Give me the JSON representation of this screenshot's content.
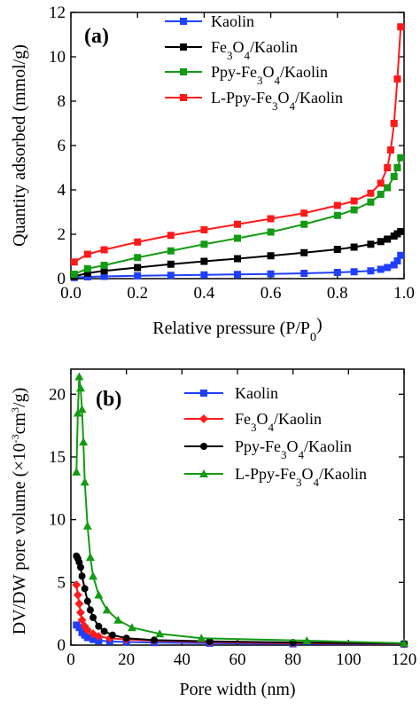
{
  "chart_data": [
    {
      "type": "line",
      "panel_label": "(a)",
      "xlabel": "Relative pressure (P/P",
      "xlabel_sub": "0",
      "xlabel_tail": ")",
      "ylabel": "Quantity adsorbed (mmol/g)",
      "xlim": [
        0.0,
        1.0
      ],
      "ylim": [
        0,
        12
      ],
      "x_ticks": [
        "0.0",
        "0.2",
        "0.4",
        "0.6",
        "0.8",
        "1.0"
      ],
      "y_ticks": [
        "0",
        "2",
        "4",
        "6",
        "8",
        "10",
        "12"
      ],
      "legend_position": "top-right",
      "series": [
        {
          "name": "Kaolin",
          "legend": [
            "Kaolin"
          ],
          "color": "#1f3fff",
          "marker": "square",
          "x": [
            0.01,
            0.05,
            0.1,
            0.2,
            0.3,
            0.4,
            0.5,
            0.6,
            0.7,
            0.8,
            0.85,
            0.9,
            0.93,
            0.95,
            0.97,
            0.98,
            0.99
          ],
          "y": [
            0.05,
            0.08,
            0.1,
            0.13,
            0.15,
            0.17,
            0.19,
            0.21,
            0.24,
            0.28,
            0.31,
            0.35,
            0.42,
            0.5,
            0.62,
            0.8,
            1.05
          ]
        },
        {
          "name": "Fe3O4/Kaolin",
          "legend": [
            "Fe",
            "3",
            "O",
            "4",
            "/Kaolin"
          ],
          "color": "#000000",
          "marker": "square",
          "x": [
            0.01,
            0.05,
            0.1,
            0.2,
            0.3,
            0.4,
            0.5,
            0.6,
            0.7,
            0.8,
            0.85,
            0.9,
            0.93,
            0.95,
            0.97,
            0.98,
            0.99
          ],
          "y": [
            0.1,
            0.25,
            0.35,
            0.5,
            0.65,
            0.78,
            0.9,
            1.03,
            1.17,
            1.32,
            1.42,
            1.55,
            1.67,
            1.78,
            1.92,
            2.02,
            2.12
          ]
        },
        {
          "name": "Ppy-Fe3O4/Kaolin",
          "legend": [
            "Ppy-Fe",
            "3",
            "O",
            "4",
            "/Kaolin"
          ],
          "color": "#139b13",
          "marker": "square",
          "x": [
            0.01,
            0.05,
            0.1,
            0.2,
            0.3,
            0.4,
            0.5,
            0.6,
            0.7,
            0.8,
            0.85,
            0.9,
            0.93,
            0.95,
            0.97,
            0.98,
            0.99
          ],
          "y": [
            0.2,
            0.45,
            0.6,
            0.95,
            1.25,
            1.55,
            1.82,
            2.1,
            2.45,
            2.85,
            3.1,
            3.45,
            3.8,
            4.1,
            4.6,
            5.0,
            5.45
          ]
        },
        {
          "name": "L-Ppy-Fe3O4/Kaolin",
          "legend": [
            "L-Ppy-Fe",
            "3",
            "O",
            "4",
            "/Kaolin"
          ],
          "color": "#ff1a1a",
          "marker": "square",
          "x": [
            0.01,
            0.05,
            0.1,
            0.2,
            0.3,
            0.4,
            0.5,
            0.6,
            0.7,
            0.8,
            0.85,
            0.9,
            0.93,
            0.95,
            0.96,
            0.97,
            0.98,
            0.99
          ],
          "y": [
            0.75,
            1.1,
            1.3,
            1.65,
            1.95,
            2.2,
            2.45,
            2.7,
            2.95,
            3.3,
            3.5,
            3.85,
            4.3,
            5.0,
            5.8,
            7.0,
            9.0,
            11.35
          ]
        }
      ]
    },
    {
      "type": "line",
      "panel_label": "(b)",
      "xlabel": "Pore width (nm)",
      "ylabel": "DV/DW pore volume (×10",
      "ylabel_sup1": "-3",
      "ylabel_mid": "cm",
      "ylabel_sup2": "3",
      "ylabel_tail": "/g)",
      "xlim": [
        0,
        120
      ],
      "ylim": [
        0,
        22
      ],
      "x_ticks": [
        "0",
        "20",
        "40",
        "60",
        "80",
        "100",
        "120"
      ],
      "y_ticks": [
        "0",
        "5",
        "10",
        "15",
        "20"
      ],
      "legend_position": "top-right",
      "series": [
        {
          "name": "Kaolin",
          "legend": [
            "Kaolin"
          ],
          "color": "#1f3fff",
          "marker": "square",
          "x": [
            2,
            3,
            4,
            5,
            6,
            8,
            10,
            14,
            20,
            30,
            50,
            80,
            120
          ],
          "y": [
            1.6,
            1.4,
            1.0,
            0.8,
            0.6,
            0.45,
            0.35,
            0.3,
            0.25,
            0.2,
            0.15,
            0.1,
            0.08
          ]
        },
        {
          "name": "Fe3O4/Kaolin",
          "legend": [
            "Fe",
            "3",
            "O",
            "4",
            "/Kaolin"
          ],
          "color": "#ff1a1a",
          "marker": "diamond",
          "x": [
            2,
            2.5,
            3,
            3.5,
            4,
            5,
            6,
            8,
            10,
            14,
            20,
            30,
            50,
            80,
            120
          ],
          "y": [
            4.8,
            4.0,
            3.3,
            2.6,
            2.0,
            1.5,
            1.2,
            0.9,
            0.7,
            0.55,
            0.45,
            0.35,
            0.25,
            0.15,
            0.1
          ]
        },
        {
          "name": "Ppy-Fe3O4/Kaolin",
          "legend": [
            "Ppy-Fe",
            "3",
            "O",
            "4",
            "/Kaolin"
          ],
          "color": "#000000",
          "marker": "circle",
          "x": [
            2,
            2.5,
            3,
            3.5,
            4,
            5,
            6,
            7,
            8,
            10,
            12,
            15,
            20,
            30,
            50,
            80,
            120
          ],
          "y": [
            7.1,
            6.9,
            6.6,
            6.2,
            5.5,
            4.5,
            3.5,
            2.8,
            2.2,
            1.5,
            1.1,
            0.8,
            0.55,
            0.4,
            0.3,
            0.2,
            0.12
          ]
        },
        {
          "name": "L-Ppy-Fe3O4/Kaolin",
          "legend": [
            "L-Ppy-Fe",
            "3",
            "O",
            "4",
            "/Kaolin"
          ],
          "color": "#139b13",
          "marker": "triangle",
          "x": [
            2,
            2.5,
            3,
            3.5,
            4,
            4.5,
            5,
            6,
            7,
            8,
            10,
            13,
            17,
            22,
            32,
            47,
            85,
            120
          ],
          "y": [
            13.8,
            18.5,
            21.4,
            20.5,
            18.8,
            16.2,
            13.0,
            9.5,
            7.0,
            5.5,
            4.0,
            2.8,
            2.0,
            1.4,
            0.9,
            0.55,
            0.35,
            0.15
          ]
        }
      ]
    }
  ]
}
